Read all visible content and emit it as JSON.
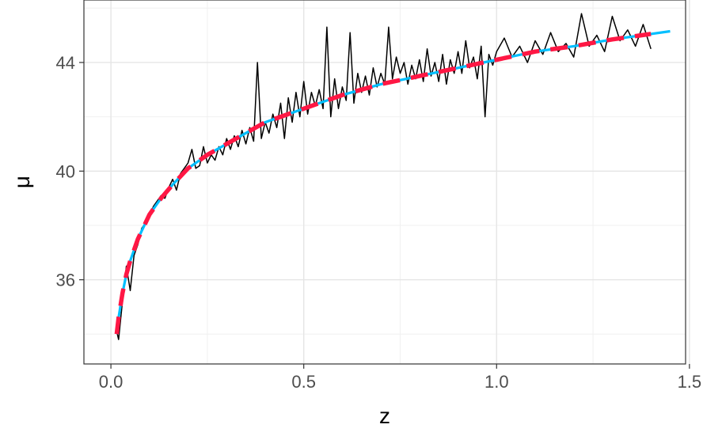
{
  "chart_data": {
    "type": "line",
    "title": "",
    "xlabel": "z",
    "ylabel": "μ",
    "xlim": [
      -0.07,
      1.49
    ],
    "ylim": [
      32.9,
      46.3
    ],
    "x_ticks": [
      0.0,
      0.5,
      1.0,
      1.5
    ],
    "x_tick_labels": [
      "0.0",
      "0.5",
      "1.0",
      "1.5"
    ],
    "y_ticks": [
      36,
      40,
      44
    ],
    "y_tick_labels": [
      "36",
      "40",
      "44"
    ],
    "grid": true,
    "legend": "none",
    "series": [
      {
        "style": "jagged-line",
        "color": "#000000",
        "points": [
          [
            0.015,
            34.1
          ],
          [
            0.02,
            33.8
          ],
          [
            0.03,
            35.2
          ],
          [
            0.04,
            36.5
          ],
          [
            0.05,
            35.6
          ],
          [
            0.06,
            36.9
          ],
          [
            0.07,
            37.3
          ],
          [
            0.08,
            37.9
          ],
          [
            0.09,
            38.1
          ],
          [
            0.1,
            38.3
          ],
          [
            0.11,
            38.7
          ],
          [
            0.12,
            38.9
          ],
          [
            0.13,
            39.1
          ],
          [
            0.14,
            39.0
          ],
          [
            0.15,
            39.4
          ],
          [
            0.16,
            39.7
          ],
          [
            0.17,
            39.3
          ],
          [
            0.18,
            39.9
          ],
          [
            0.19,
            40.1
          ],
          [
            0.2,
            40.3
          ],
          [
            0.21,
            40.8
          ],
          [
            0.22,
            40.1
          ],
          [
            0.23,
            40.2
          ],
          [
            0.24,
            40.9
          ],
          [
            0.25,
            40.3
          ],
          [
            0.26,
            40.6
          ],
          [
            0.27,
            40.4
          ],
          [
            0.28,
            40.9
          ],
          [
            0.29,
            40.6
          ],
          [
            0.3,
            41.2
          ],
          [
            0.31,
            40.8
          ],
          [
            0.32,
            41.3
          ],
          [
            0.33,
            40.9
          ],
          [
            0.34,
            41.5
          ],
          [
            0.35,
            41.0
          ],
          [
            0.36,
            41.6
          ],
          [
            0.37,
            41.1
          ],
          [
            0.38,
            44.0
          ],
          [
            0.39,
            41.2
          ],
          [
            0.4,
            41.8
          ],
          [
            0.41,
            41.4
          ],
          [
            0.42,
            42.1
          ],
          [
            0.43,
            41.6
          ],
          [
            0.44,
            42.5
          ],
          [
            0.45,
            41.2
          ],
          [
            0.46,
            42.7
          ],
          [
            0.47,
            41.8
          ],
          [
            0.48,
            42.9
          ],
          [
            0.49,
            42.0
          ],
          [
            0.5,
            43.3
          ],
          [
            0.51,
            42.1
          ],
          [
            0.52,
            42.9
          ],
          [
            0.53,
            42.4
          ],
          [
            0.54,
            43.0
          ],
          [
            0.55,
            42.3
          ],
          [
            0.56,
            45.3
          ],
          [
            0.57,
            42.0
          ],
          [
            0.58,
            43.4
          ],
          [
            0.59,
            42.3
          ],
          [
            0.6,
            43.1
          ],
          [
            0.61,
            42.6
          ],
          [
            0.62,
            45.1
          ],
          [
            0.63,
            42.5
          ],
          [
            0.64,
            43.6
          ],
          [
            0.65,
            42.9
          ],
          [
            0.66,
            43.5
          ],
          [
            0.67,
            42.8
          ],
          [
            0.68,
            43.8
          ],
          [
            0.69,
            43.1
          ],
          [
            0.7,
            43.6
          ],
          [
            0.71,
            43.2
          ],
          [
            0.72,
            45.3
          ],
          [
            0.73,
            43.4
          ],
          [
            0.74,
            44.2
          ],
          [
            0.75,
            43.6
          ],
          [
            0.76,
            44.0
          ],
          [
            0.77,
            43.2
          ],
          [
            0.78,
            43.9
          ],
          [
            0.79,
            43.4
          ],
          [
            0.8,
            44.1
          ],
          [
            0.81,
            43.3
          ],
          [
            0.82,
            44.5
          ],
          [
            0.83,
            43.5
          ],
          [
            0.84,
            44.0
          ],
          [
            0.85,
            43.3
          ],
          [
            0.86,
            44.3
          ],
          [
            0.87,
            43.2
          ],
          [
            0.88,
            44.1
          ],
          [
            0.89,
            43.6
          ],
          [
            0.9,
            44.4
          ],
          [
            0.91,
            43.6
          ],
          [
            0.92,
            44.8
          ],
          [
            0.93,
            43.8
          ],
          [
            0.94,
            44.2
          ],
          [
            0.95,
            43.4
          ],
          [
            0.96,
            44.6
          ],
          [
            0.97,
            42.0
          ],
          [
            0.98,
            44.3
          ],
          [
            0.99,
            43.9
          ],
          [
            1.0,
            44.4
          ],
          [
            1.02,
            44.9
          ],
          [
            1.04,
            44.2
          ],
          [
            1.06,
            44.6
          ],
          [
            1.08,
            44.0
          ],
          [
            1.1,
            44.8
          ],
          [
            1.12,
            44.3
          ],
          [
            1.14,
            45.1
          ],
          [
            1.16,
            44.4
          ],
          [
            1.18,
            44.7
          ],
          [
            1.2,
            44.2
          ],
          [
            1.22,
            45.8
          ],
          [
            1.24,
            44.6
          ],
          [
            1.26,
            45.0
          ],
          [
            1.28,
            44.4
          ],
          [
            1.3,
            45.7
          ],
          [
            1.32,
            44.8
          ],
          [
            1.34,
            45.2
          ],
          [
            1.36,
            44.6
          ],
          [
            1.38,
            45.4
          ],
          [
            1.4,
            44.5
          ]
        ]
      },
      {
        "style": "solid-smooth",
        "color": "#00BFFF",
        "points": [
          [
            0.015,
            34.0
          ],
          [
            0.02,
            34.6
          ],
          [
            0.03,
            35.5
          ],
          [
            0.04,
            36.2
          ],
          [
            0.05,
            36.7
          ],
          [
            0.07,
            37.5
          ],
          [
            0.1,
            38.4
          ],
          [
            0.13,
            39.0
          ],
          [
            0.16,
            39.5
          ],
          [
            0.2,
            40.1
          ],
          [
            0.25,
            40.6
          ],
          [
            0.3,
            41.0
          ],
          [
            0.35,
            41.4
          ],
          [
            0.4,
            41.8
          ],
          [
            0.5,
            42.3
          ],
          [
            0.6,
            42.8
          ],
          [
            0.7,
            43.2
          ],
          [
            0.8,
            43.5
          ],
          [
            0.9,
            43.8
          ],
          [
            1.0,
            44.1
          ],
          [
            1.1,
            44.4
          ],
          [
            1.2,
            44.6
          ],
          [
            1.3,
            44.85
          ],
          [
            1.4,
            45.05
          ],
          [
            1.45,
            45.15
          ]
        ]
      },
      {
        "style": "dashed-smooth",
        "color": "#FF1744",
        "points": [
          [
            0.015,
            34.0
          ],
          [
            0.02,
            34.6
          ],
          [
            0.03,
            35.5
          ],
          [
            0.04,
            36.2
          ],
          [
            0.05,
            36.7
          ],
          [
            0.07,
            37.5
          ],
          [
            0.1,
            38.4
          ],
          [
            0.13,
            39.0
          ],
          [
            0.16,
            39.5
          ],
          [
            0.2,
            40.1
          ],
          [
            0.25,
            40.6
          ],
          [
            0.3,
            41.0
          ],
          [
            0.35,
            41.4
          ],
          [
            0.4,
            41.8
          ],
          [
            0.5,
            42.3
          ],
          [
            0.6,
            42.8
          ],
          [
            0.7,
            43.2
          ],
          [
            0.8,
            43.5
          ],
          [
            0.9,
            43.8
          ],
          [
            1.0,
            44.1
          ],
          [
            1.1,
            44.4
          ],
          [
            1.2,
            44.6
          ],
          [
            1.3,
            44.85
          ],
          [
            1.4,
            45.05
          ]
        ]
      }
    ]
  }
}
